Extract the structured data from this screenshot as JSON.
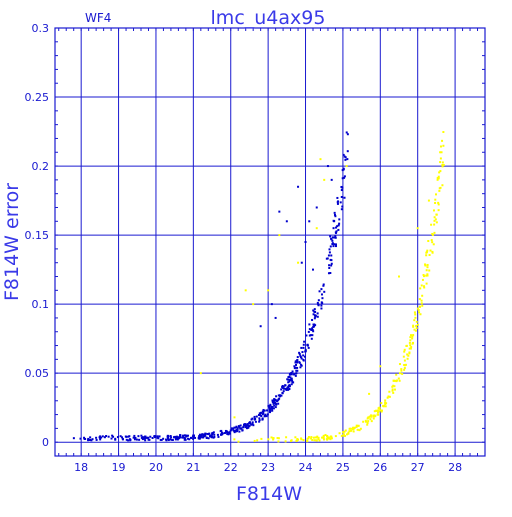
{
  "chart_data": {
    "type": "scatter",
    "title": "lmc_u4ax95",
    "panel_label": "WF4",
    "xlabel": "F814W",
    "ylabel": "F814W error",
    "xlim": [
      17.3,
      28.8
    ],
    "ylim": [
      -0.01,
      0.3
    ],
    "x_ticks": [
      18,
      19,
      20,
      21,
      22,
      23,
      24,
      25,
      26,
      27,
      28
    ],
    "y_ticks": [
      0,
      0.05,
      0.1,
      0.15,
      0.2,
      0.25,
      0.3
    ],
    "y_tick_labels": [
      "0",
      "0.05",
      "0.1",
      "0.15",
      "0.2",
      "0.25",
      "0.3"
    ],
    "grid": true,
    "series": [
      {
        "color": "#0000cc",
        "curve": {
          "x_start": 17.6,
          "x_end": 25.15,
          "y_min": 0.003,
          "y_max": 0.215,
          "exponent": 0.58,
          "count": 520
        },
        "outliers": [
          [
            23.3,
            0.167
          ],
          [
            23.5,
            0.16
          ],
          [
            23.8,
            0.185
          ],
          [
            24.0,
            0.145
          ],
          [
            24.1,
            0.16
          ],
          [
            24.2,
            0.125
          ],
          [
            23.9,
            0.13
          ],
          [
            23.2,
            0.09
          ],
          [
            22.8,
            0.084
          ],
          [
            24.3,
            0.17
          ],
          [
            24.6,
            0.2
          ],
          [
            24.7,
            0.19
          ],
          [
            23.1,
            0.1
          ]
        ]
      },
      {
        "color": "#ffff00",
        "curve": {
          "x_start": 21.5,
          "x_end": 27.7,
          "y_min": 0.002,
          "y_max": 0.215,
          "exponent": 0.4,
          "count": 280
        },
        "outliers": [
          [
            21.2,
            0.05
          ],
          [
            22.1,
            0.018
          ],
          [
            22.4,
            0.11
          ],
          [
            22.6,
            0.1
          ],
          [
            23.0,
            0.11
          ],
          [
            23.3,
            0.15
          ],
          [
            23.8,
            0.13
          ],
          [
            24.3,
            0.155
          ],
          [
            24.5,
            0.19
          ],
          [
            24.4,
            0.205
          ],
          [
            25.1,
            0.2
          ],
          [
            25.7,
            0.035
          ],
          [
            26.0,
            0.055
          ],
          [
            26.5,
            0.12
          ],
          [
            27.0,
            0.155
          ],
          [
            27.3,
            0.175
          ],
          [
            27.6,
            0.21
          ]
        ]
      }
    ]
  }
}
